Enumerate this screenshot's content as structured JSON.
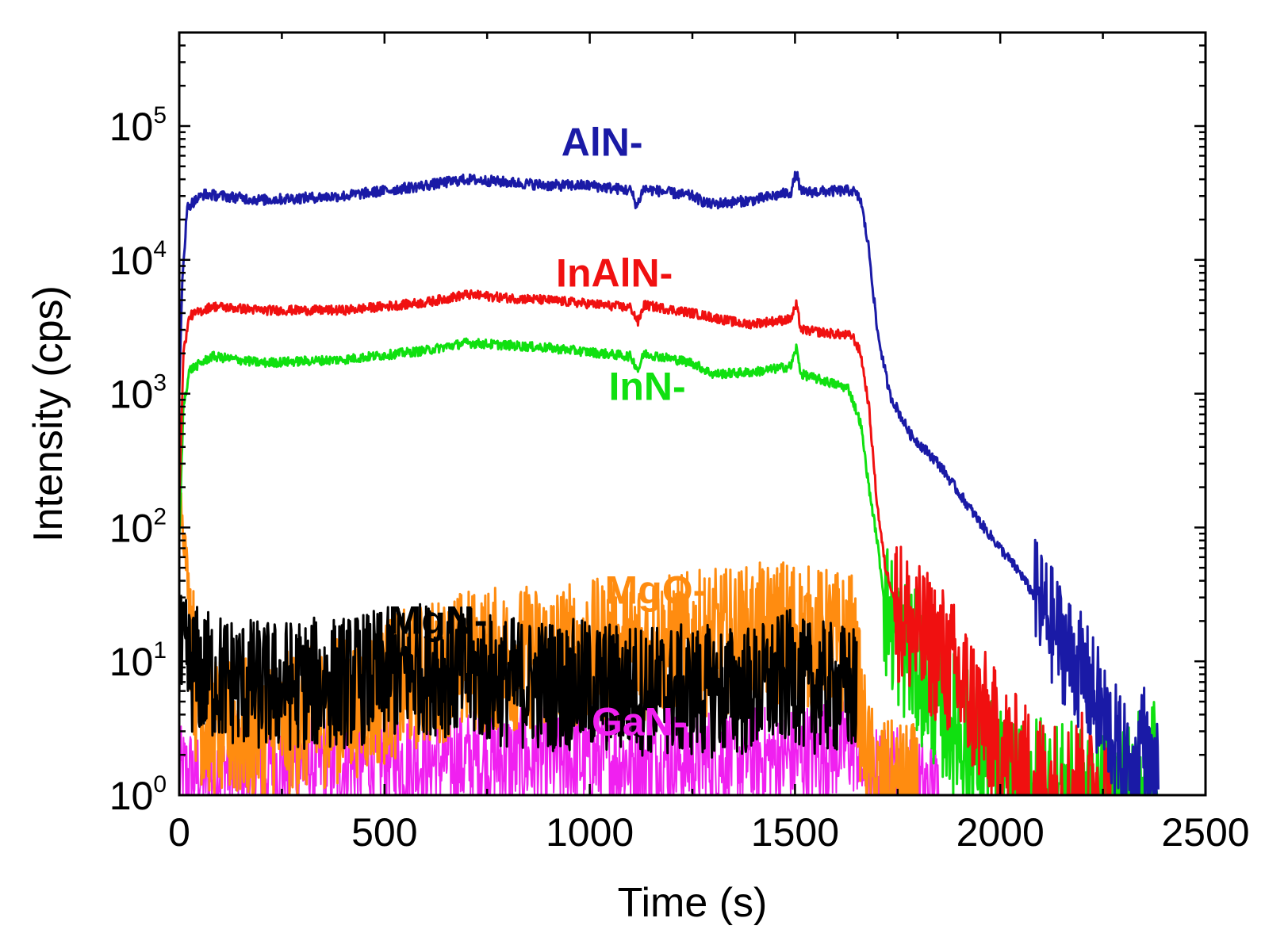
{
  "chart_data": {
    "type": "line",
    "title": "",
    "xlabel": "Time (s)",
    "ylabel": "Intensity (cps)",
    "xlim": [
      0,
      2500
    ],
    "ylim": [
      1,
      500000
    ],
    "yscale": "log",
    "grid": false,
    "x_ticks": [
      0,
      500,
      1000,
      1500,
      2000,
      2500
    ],
    "x_tick_labels": [
      "0",
      "500",
      "1000",
      "1500",
      "2000",
      "2500"
    ],
    "y_ticks": [
      {
        "value": 1,
        "base": "10",
        "exp": "0"
      },
      {
        "value": 10,
        "base": "10",
        "exp": "1"
      },
      {
        "value": 100,
        "base": "10",
        "exp": "2"
      },
      {
        "value": 1000,
        "base": "10",
        "exp": "3"
      },
      {
        "value": 10000,
        "base": "10",
        "exp": "4"
      },
      {
        "value": 100000,
        "base": "10",
        "exp": "5"
      }
    ],
    "series": [
      {
        "name": "AlN-",
        "label": "AlN-",
        "color": "#1a1aa6",
        "label_at": [
          1030,
          60000
        ],
        "noise": 0.04,
        "floor_noise": 0.45,
        "points": [
          [
            0,
            1000
          ],
          [
            8,
            8000
          ],
          [
            20,
            25000
          ],
          [
            60,
            31000
          ],
          [
            200,
            28000
          ],
          [
            400,
            30000
          ],
          [
            600,
            36000
          ],
          [
            700,
            40000
          ],
          [
            800,
            38000
          ],
          [
            900,
            36000
          ],
          [
            1000,
            36000
          ],
          [
            1100,
            33000
          ],
          [
            1115,
            25000
          ],
          [
            1130,
            34000
          ],
          [
            1250,
            30000
          ],
          [
            1290,
            26000
          ],
          [
            1400,
            28000
          ],
          [
            1490,
            32000
          ],
          [
            1503,
            45000
          ],
          [
            1515,
            32000
          ],
          [
            1640,
            33000
          ],
          [
            1660,
            28000
          ],
          [
            1680,
            12000
          ],
          [
            1700,
            3000
          ],
          [
            1730,
            1000
          ],
          [
            1780,
            500
          ],
          [
            1850,
            300
          ],
          [
            1900,
            180
          ],
          [
            1950,
            110
          ],
          [
            2000,
            70
          ],
          [
            2050,
            45
          ],
          [
            2100,
            25
          ],
          [
            2150,
            14
          ],
          [
            2200,
            8
          ],
          [
            2250,
            4
          ],
          [
            2300,
            1.8
          ],
          [
            2330,
            1.2
          ],
          [
            2345,
            3.5
          ],
          [
            2360,
            1.5
          ],
          [
            2385,
            1.2
          ]
        ]
      },
      {
        "name": "InAlN-",
        "label": "InAlN-",
        "color": "#f01010",
        "label_at": [
          1060,
          6300
        ],
        "noise": 0.035,
        "floor_noise": 0.55,
        "points": [
          [
            0,
            150
          ],
          [
            10,
            2000
          ],
          [
            25,
            3800
          ],
          [
            80,
            4500
          ],
          [
            200,
            4200
          ],
          [
            400,
            4200
          ],
          [
            600,
            4800
          ],
          [
            700,
            5500
          ],
          [
            800,
            5200
          ],
          [
            900,
            5000
          ],
          [
            1100,
            4400
          ],
          [
            1118,
            3400
          ],
          [
            1132,
            4600
          ],
          [
            1250,
            4000
          ],
          [
            1380,
            3300
          ],
          [
            1490,
            3600
          ],
          [
            1503,
            4600
          ],
          [
            1515,
            3000
          ],
          [
            1640,
            2700
          ],
          [
            1660,
            2000
          ],
          [
            1680,
            800
          ],
          [
            1700,
            150
          ],
          [
            1720,
            50
          ],
          [
            1750,
            25
          ],
          [
            1800,
            15
          ],
          [
            1850,
            12
          ],
          [
            1900,
            7
          ],
          [
            1950,
            4
          ],
          [
            2000,
            2.2
          ],
          [
            2050,
            1.5
          ],
          [
            2100,
            1.2
          ],
          [
            2150,
            1
          ],
          [
            2200,
            1.2
          ],
          [
            2250,
            1
          ],
          [
            2270,
            1
          ]
        ]
      },
      {
        "name": "InN-",
        "label": "InN-",
        "color": "#10e010",
        "label_at": [
          1140,
          900
        ],
        "noise": 0.035,
        "floor_noise": 0.55,
        "points": [
          [
            0,
            80
          ],
          [
            10,
            800
          ],
          [
            25,
            1500
          ],
          [
            80,
            1900
          ],
          [
            200,
            1700
          ],
          [
            400,
            1800
          ],
          [
            600,
            2100
          ],
          [
            700,
            2400
          ],
          [
            800,
            2300
          ],
          [
            900,
            2200
          ],
          [
            1100,
            1900
          ],
          [
            1118,
            1500
          ],
          [
            1132,
            2000
          ],
          [
            1250,
            1700
          ],
          [
            1300,
            1400
          ],
          [
            1400,
            1450
          ],
          [
            1490,
            1600
          ],
          [
            1503,
            2200
          ],
          [
            1515,
            1400
          ],
          [
            1630,
            1100
          ],
          [
            1660,
            600
          ],
          [
            1680,
            200
          ],
          [
            1700,
            80
          ],
          [
            1720,
            25
          ],
          [
            1750,
            15
          ],
          [
            1800,
            9
          ],
          [
            1850,
            5
          ],
          [
            1900,
            3
          ],
          [
            1950,
            2
          ],
          [
            2000,
            1.3
          ],
          [
            2050,
            1
          ],
          [
            2100,
            1.2
          ],
          [
            2150,
            1
          ],
          [
            2300,
            1
          ],
          [
            2350,
            1.3
          ],
          [
            2385,
            2
          ]
        ]
      },
      {
        "name": "MgO-",
        "label": "MgO-",
        "color": "#ff8c10",
        "label_at": [
          1160,
          27
        ],
        "noise": 0.16,
        "floor_noise": 0.55,
        "points": [
          [
            0,
            200
          ],
          [
            10,
            100
          ],
          [
            25,
            30
          ],
          [
            40,
            6
          ],
          [
            60,
            3.5
          ],
          [
            150,
            3
          ],
          [
            300,
            3.5
          ],
          [
            450,
            5
          ],
          [
            550,
            7
          ],
          [
            600,
            8
          ],
          [
            700,
            10
          ],
          [
            900,
            11
          ],
          [
            1200,
            13
          ],
          [
            1400,
            15
          ],
          [
            1503,
            18
          ],
          [
            1520,
            15
          ],
          [
            1600,
            14
          ],
          [
            1640,
            13
          ],
          [
            1650,
            8
          ],
          [
            1665,
            3
          ],
          [
            1680,
            1.5
          ],
          [
            1700,
            1.1
          ],
          [
            1750,
            1
          ],
          [
            1800,
            1
          ]
        ]
      },
      {
        "name": "MgN-",
        "label": "MgN-",
        "color": "#000000",
        "label_at": [
          630,
          16
        ],
        "noise": 0.14,
        "floor_noise": 0.5,
        "points": [
          [
            0,
            10
          ],
          [
            60,
            8
          ],
          [
            200,
            6.5
          ],
          [
            400,
            7
          ],
          [
            600,
            9
          ],
          [
            700,
            8
          ],
          [
            800,
            7
          ],
          [
            1000,
            6.5
          ],
          [
            1200,
            6
          ],
          [
            1400,
            6
          ],
          [
            1500,
            8
          ],
          [
            1520,
            6.5
          ],
          [
            1650,
            6
          ]
        ]
      },
      {
        "name": "GaN-",
        "label": "GaN-",
        "color": "#f020f0",
        "label_at": [
          1120,
          2.8
        ],
        "noise": 0.38,
        "floor_noise": 0.4,
        "points": [
          [
            0,
            1.3
          ],
          [
            100,
            1.6
          ],
          [
            500,
            1.8
          ],
          [
            1000,
            1.8
          ],
          [
            1500,
            1.9
          ],
          [
            1650,
            2.5
          ],
          [
            1670,
            1.4
          ],
          [
            1700,
            1.3
          ],
          [
            1750,
            1.4
          ],
          [
            1800,
            1.1
          ],
          [
            1850,
            1
          ]
        ]
      }
    ]
  }
}
